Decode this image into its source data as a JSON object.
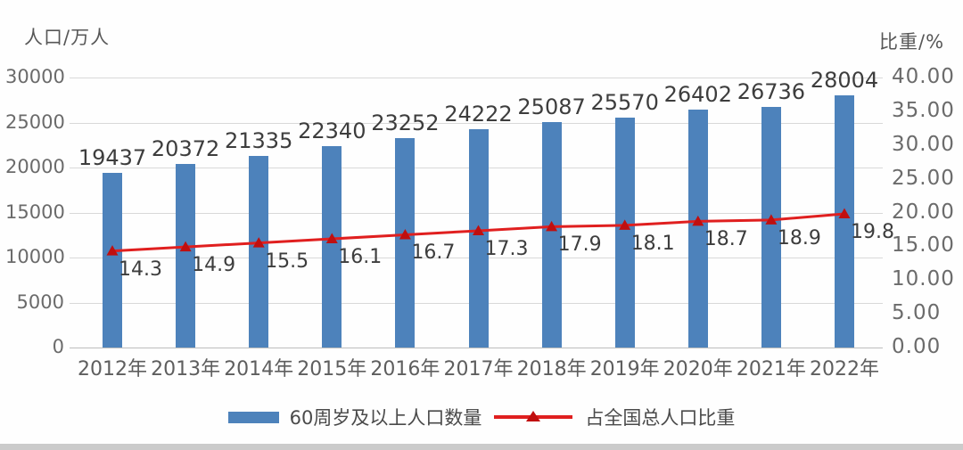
{
  "page": {
    "bottom_strip_color": "#cbcbcb"
  },
  "chart_data": {
    "type": "bar",
    "title": "",
    "categories": [
      "2012年",
      "2013年",
      "2014年",
      "2015年",
      "2016年",
      "2017年",
      "2018年",
      "2019年",
      "2020年",
      "2021年",
      "2022年"
    ],
    "series": [
      {
        "name": "60周岁及以上人口数量",
        "type": "bar",
        "axis": "left",
        "color": "#4d82bb",
        "values": [
          19437,
          20372,
          21335,
          22340,
          23252,
          24222,
          25087,
          25570,
          26402,
          26736,
          28004
        ],
        "value_labels": [
          "19437",
          "20372",
          "21335",
          "22340",
          "23252",
          "24222",
          "25087",
          "25570",
          "26402",
          "26736",
          "28004"
        ]
      },
      {
        "name": "占全国总人口比重",
        "type": "line",
        "axis": "right",
        "color": "#e01f1f",
        "marker": "triangle",
        "marker_color": "#c00f0f",
        "values": [
          14.3,
          14.9,
          15.5,
          16.1,
          16.7,
          17.3,
          17.9,
          18.1,
          18.7,
          18.9,
          19.8
        ],
        "value_labels": [
          "14.3",
          "14.9",
          "15.5",
          "16.1",
          "16.7",
          "17.3",
          "17.9",
          "18.1",
          "18.7",
          "18.9",
          "19.8"
        ]
      }
    ],
    "left_axis": {
      "title": "人口/万人",
      "min": 0,
      "max": 30000,
      "step": 5000,
      "tick_labels": [
        "30000",
        "25000",
        "20000",
        "15000",
        "10000",
        "5000",
        "0"
      ]
    },
    "right_axis": {
      "title": "比重/%",
      "min": 0,
      "max": 40,
      "step": 5,
      "tick_labels": [
        "40.00",
        "35.00",
        "30.00",
        "25.00",
        "20.00",
        "15.00",
        "10.00",
        "5.00",
        "0.00"
      ]
    },
    "grid": true,
    "data_labels": true,
    "legend_position": "bottom"
  }
}
